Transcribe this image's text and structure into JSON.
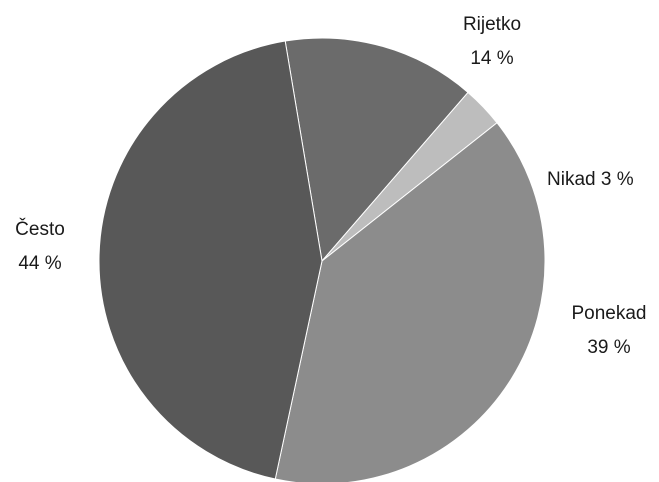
{
  "chart_data": {
    "type": "pie",
    "title": "",
    "legend": "none",
    "slices": [
      {
        "name": "Rijetko",
        "value": 14,
        "label": "14 %",
        "color": "#6b6b6b"
      },
      {
        "name": "Nikad",
        "value": 3,
        "label": "3 %",
        "color": "#bdbdbd"
      },
      {
        "name": "Ponekad",
        "value": 39,
        "label": "39 %",
        "color": "#8c8c8c"
      },
      {
        "name": "Često",
        "value": 44,
        "label": "44 %",
        "color": "#585858"
      }
    ]
  }
}
